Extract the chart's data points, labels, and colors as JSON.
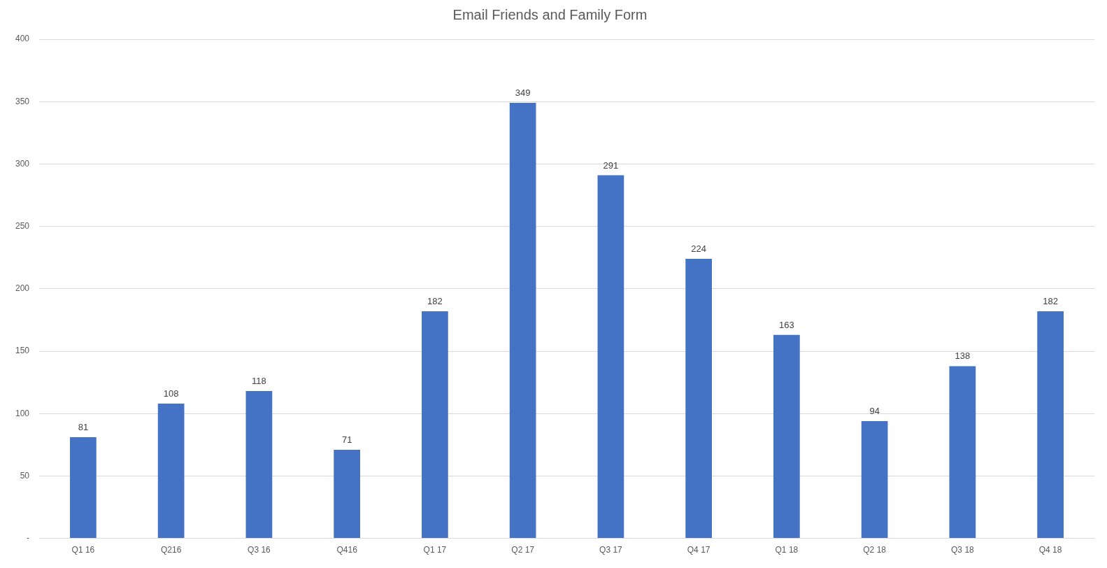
{
  "chart_data": {
    "type": "bar",
    "title": "Email Friends and Family Form",
    "categories": [
      "Q1 16",
      "Q216",
      "Q3 16",
      "Q416",
      "Q1 17",
      "Q2 17",
      "Q3 17",
      "Q4 17",
      "Q1 18",
      "Q2 18",
      "Q3 18",
      "Q4 18"
    ],
    "values": [
      81,
      108,
      118,
      71,
      182,
      349,
      291,
      224,
      163,
      94,
      138,
      182
    ],
    "color": "#4472c4",
    "ylim": [
      0,
      400
    ],
    "yticks": [
      {
        "value": 0,
        "label": "-"
      },
      50,
      100,
      150,
      200,
      250,
      300,
      350,
      400
    ],
    "grid": "y",
    "data_labels": true,
    "legend": false
  }
}
